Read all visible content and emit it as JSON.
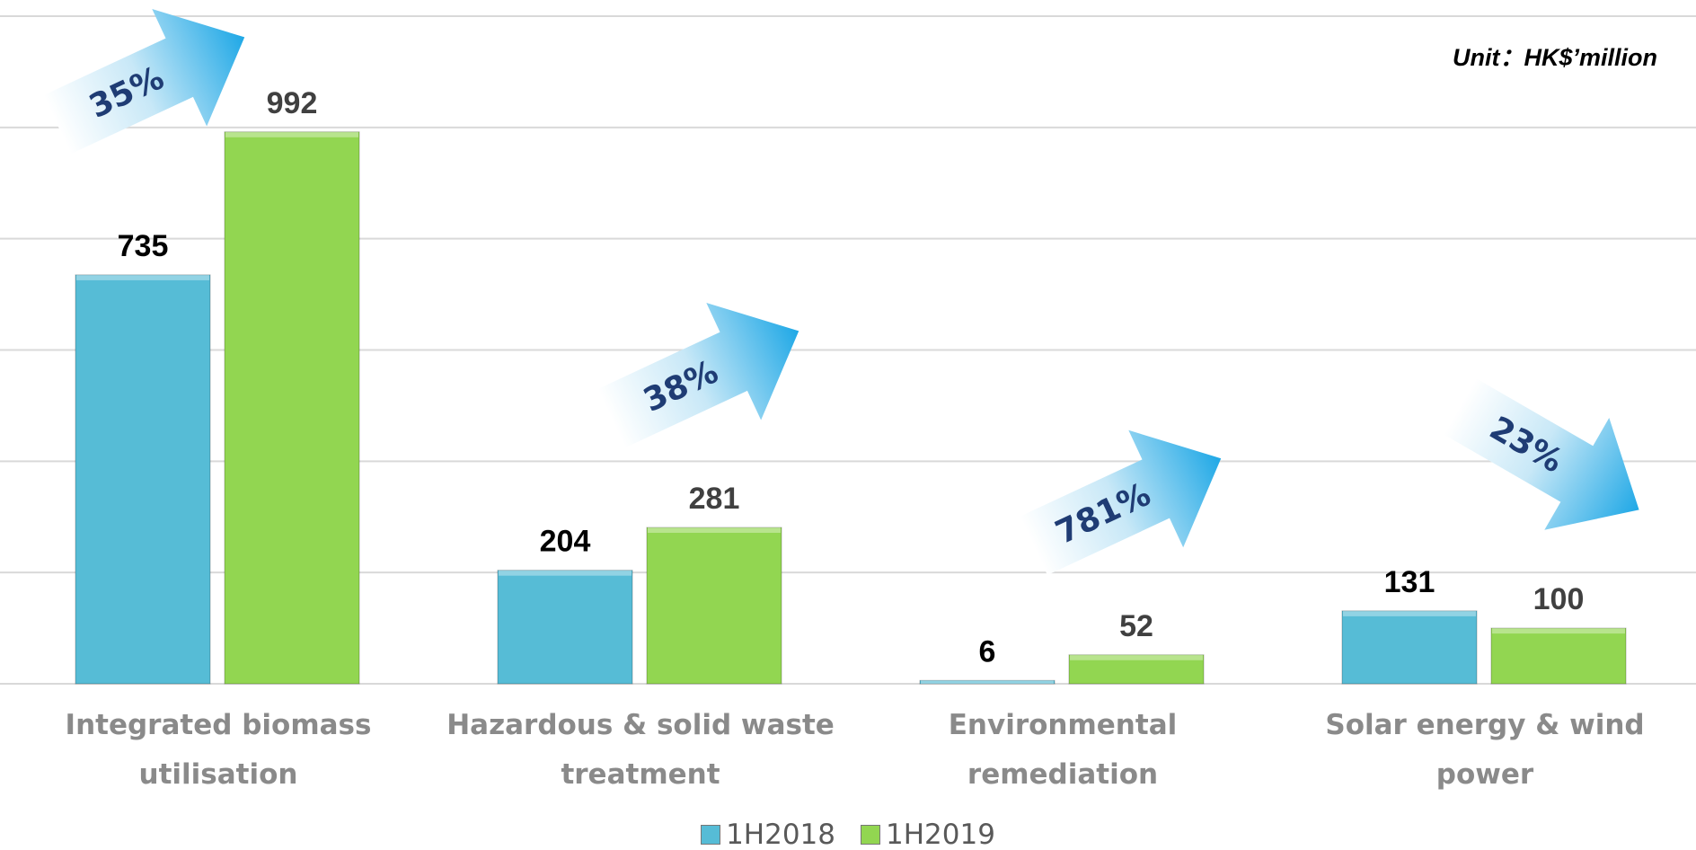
{
  "chart_data": {
    "type": "bar",
    "unit_label": "Unit：HK$’million",
    "categories": [
      "Integrated biomass utilisation",
      "Hazardous & solid waste treatment",
      "Environmental remediation",
      "Solar energy & wind power"
    ],
    "series": [
      {
        "name": "1H2018",
        "color": "#56bcd6",
        "values": [
          735,
          204,
          6,
          131
        ]
      },
      {
        "name": "1H2019",
        "color": "#92d651",
        "values": [
          992,
          281,
          52,
          100
        ]
      }
    ],
    "annotations": [
      "35%",
      "38%",
      "781%",
      "23%"
    ],
    "ylim": [
      0,
      1200
    ],
    "yticks": [
      0,
      200,
      400,
      600,
      800,
      1000,
      1200
    ],
    "grid": true
  }
}
